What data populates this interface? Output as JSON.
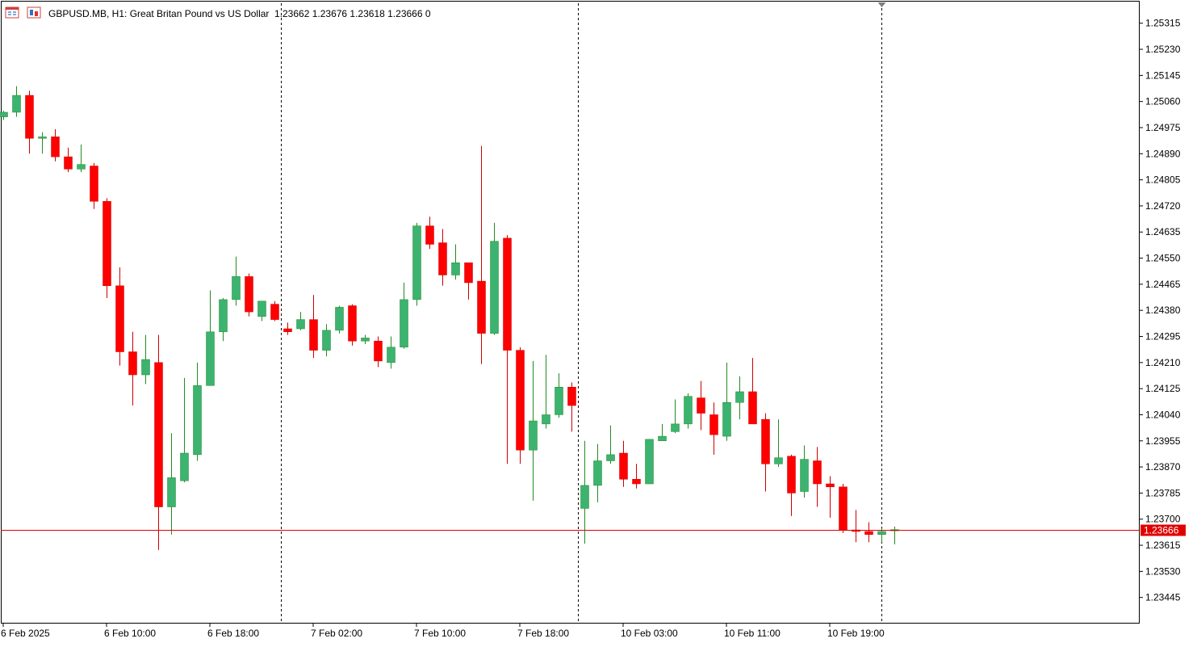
{
  "header": {
    "symbol_text": "GBPUSD.MB, H1:  Great Britan Pound vs US Dollar",
    "ohlc_text": "1.23662 1.23676 1.23618 1.23666  0"
  },
  "colors": {
    "bull": "#3cb371",
    "bear": "#ff0000",
    "wick_bull": "#228b22",
    "wick_bear": "#cc0000",
    "price_line": "#e00000",
    "axis": "#000000",
    "separator": "#000000"
  },
  "icons": [
    "chart-window-icon",
    "chart-type-icon",
    "shift-marker-icon"
  ],
  "chart_data": {
    "type": "candlestick",
    "symbol": "GBPUSD.MB",
    "timeframe": "H1",
    "ylim": [
      1.2336,
      1.2538
    ],
    "y_ticks": [
      "1.25315",
      "1.25230",
      "1.25145",
      "1.25060",
      "1.24975",
      "1.24890",
      "1.24805",
      "1.24720",
      "1.24635",
      "1.24550",
      "1.24465",
      "1.24380",
      "1.24295",
      "1.24210",
      "1.24125",
      "1.24040",
      "1.23955",
      "1.23870",
      "1.23785",
      "1.23700",
      "1.23615",
      "1.23530",
      "1.23445"
    ],
    "x_labels": [
      {
        "label": "6 Feb 2025",
        "index": 0
      },
      {
        "label": "6 Feb 10:00",
        "index": 8
      },
      {
        "label": "6 Feb 18:00",
        "index": 16
      },
      {
        "label": "7 Feb 02:00",
        "index": 24
      },
      {
        "label": "7 Feb 10:00",
        "index": 32
      },
      {
        "label": "7 Feb 18:00",
        "index": 40
      },
      {
        "label": "10 Feb 03:00",
        "index": 48
      },
      {
        "label": "10 Feb 11:00",
        "index": 56
      },
      {
        "label": "10 Feb 19:00",
        "index": 64
      }
    ],
    "day_separators": [
      21.5,
      44.5
    ],
    "current_bar_index": 68,
    "current_price": "1.23666",
    "candles": [
      {
        "o": 1.2501,
        "h": 1.2503,
        "l": 1.25,
        "c": 1.25025
      },
      {
        "o": 1.25025,
        "h": 1.2511,
        "l": 1.2501,
        "c": 1.2508
      },
      {
        "o": 1.2508,
        "h": 1.25095,
        "l": 1.2489,
        "c": 1.2494
      },
      {
        "o": 1.2494,
        "h": 1.2496,
        "l": 1.2489,
        "c": 1.24945
      },
      {
        "o": 1.24945,
        "h": 1.2497,
        "l": 1.24865,
        "c": 1.2488
      },
      {
        "o": 1.2488,
        "h": 1.2491,
        "l": 1.2483,
        "c": 1.2484
      },
      {
        "o": 1.2484,
        "h": 1.2492,
        "l": 1.2483,
        "c": 1.24855
      },
      {
        "o": 1.2485,
        "h": 1.2486,
        "l": 1.2471,
        "c": 1.24735
      },
      {
        "o": 1.24735,
        "h": 1.24745,
        "l": 1.2442,
        "c": 1.2446
      },
      {
        "o": 1.2446,
        "h": 1.2452,
        "l": 1.242,
        "c": 1.24245
      },
      {
        "o": 1.24245,
        "h": 1.2431,
        "l": 1.2407,
        "c": 1.2417
      },
      {
        "o": 1.2417,
        "h": 1.243,
        "l": 1.2414,
        "c": 1.2422
      },
      {
        "o": 1.2421,
        "h": 1.243,
        "l": 1.236,
        "c": 1.2374
      },
      {
        "o": 1.2374,
        "h": 1.2398,
        "l": 1.2365,
        "c": 1.23835
      },
      {
        "o": 1.23825,
        "h": 1.2416,
        "l": 1.2382,
        "c": 1.23915
      },
      {
        "o": 1.2391,
        "h": 1.2421,
        "l": 1.2389,
        "c": 1.24135
      },
      {
        "o": 1.24135,
        "h": 1.24445,
        "l": 1.24135,
        "c": 1.2431
      },
      {
        "o": 1.2431,
        "h": 1.2442,
        "l": 1.2428,
        "c": 1.24415
      },
      {
        "o": 1.24415,
        "h": 1.24555,
        "l": 1.24395,
        "c": 1.2449
      },
      {
        "o": 1.2449,
        "h": 1.245,
        "l": 1.2436,
        "c": 1.24375
      },
      {
        "o": 1.2436,
        "h": 1.2441,
        "l": 1.24345,
        "c": 1.2441
      },
      {
        "o": 1.244,
        "h": 1.2441,
        "l": 1.24345,
        "c": 1.2435
      },
      {
        "o": 1.2432,
        "h": 1.2434,
        "l": 1.243,
        "c": 1.2431
      },
      {
        "o": 1.2432,
        "h": 1.24375,
        "l": 1.24315,
        "c": 1.2435
      },
      {
        "o": 1.2435,
        "h": 1.2443,
        "l": 1.24225,
        "c": 1.2425
      },
      {
        "o": 1.2425,
        "h": 1.24335,
        "l": 1.2423,
        "c": 1.24315
      },
      {
        "o": 1.24315,
        "h": 1.24395,
        "l": 1.24305,
        "c": 1.2439
      },
      {
        "o": 1.24395,
        "h": 1.244,
        "l": 1.24265,
        "c": 1.2428
      },
      {
        "o": 1.2428,
        "h": 1.243,
        "l": 1.2427,
        "c": 1.2429
      },
      {
        "o": 1.2428,
        "h": 1.24295,
        "l": 1.24195,
        "c": 1.24215
      },
      {
        "o": 1.2421,
        "h": 1.24295,
        "l": 1.2419,
        "c": 1.2426
      },
      {
        "o": 1.2426,
        "h": 1.2447,
        "l": 1.24255,
        "c": 1.24415
      },
      {
        "o": 1.24415,
        "h": 1.24665,
        "l": 1.24395,
        "c": 1.24655
      },
      {
        "o": 1.24655,
        "h": 1.24685,
        "l": 1.2458,
        "c": 1.24595
      },
      {
        "o": 1.246,
        "h": 1.24645,
        "l": 1.2446,
        "c": 1.24495
      },
      {
        "o": 1.24495,
        "h": 1.24595,
        "l": 1.2448,
        "c": 1.24535
      },
      {
        "o": 1.24535,
        "h": 1.24535,
        "l": 1.24415,
        "c": 1.2447
      },
      {
        "o": 1.24475,
        "h": 1.24915,
        "l": 1.24205,
        "c": 1.24305
      },
      {
        "o": 1.24305,
        "h": 1.24665,
        "l": 1.243,
        "c": 1.24605
      },
      {
        "o": 1.24615,
        "h": 1.24625,
        "l": 1.2388,
        "c": 1.2425
      },
      {
        "o": 1.2425,
        "h": 1.2426,
        "l": 1.2388,
        "c": 1.23925
      },
      {
        "o": 1.23925,
        "h": 1.24215,
        "l": 1.2376,
        "c": 1.2402
      },
      {
        "o": 1.2401,
        "h": 1.24235,
        "l": 1.23995,
        "c": 1.2404
      },
      {
        "o": 1.2404,
        "h": 1.24175,
        "l": 1.2403,
        "c": 1.2413
      },
      {
        "o": 1.2413,
        "h": 1.24145,
        "l": 1.23985,
        "c": 1.2407
      },
      {
        "o": 1.23735,
        "h": 1.23955,
        "l": 1.2362,
        "c": 1.2381
      },
      {
        "o": 1.2381,
        "h": 1.23945,
        "l": 1.23755,
        "c": 1.2389
      },
      {
        "o": 1.2389,
        "h": 1.24005,
        "l": 1.2388,
        "c": 1.2391
      },
      {
        "o": 1.23915,
        "h": 1.23955,
        "l": 1.23805,
        "c": 1.2383
      },
      {
        "o": 1.2383,
        "h": 1.2388,
        "l": 1.238,
        "c": 1.23815
      },
      {
        "o": 1.23815,
        "h": 1.2396,
        "l": 1.23815,
        "c": 1.2396
      },
      {
        "o": 1.23955,
        "h": 1.2401,
        "l": 1.23955,
        "c": 1.2397
      },
      {
        "o": 1.23985,
        "h": 1.2409,
        "l": 1.2398,
        "c": 1.2401
      },
      {
        "o": 1.2401,
        "h": 1.2411,
        "l": 1.23995,
        "c": 1.241
      },
      {
        "o": 1.24095,
        "h": 1.2415,
        "l": 1.2399,
        "c": 1.24045
      },
      {
        "o": 1.2404,
        "h": 1.2408,
        "l": 1.2391,
        "c": 1.23975
      },
      {
        "o": 1.2397,
        "h": 1.2421,
        "l": 1.23955,
        "c": 1.2408
      },
      {
        "o": 1.2408,
        "h": 1.24165,
        "l": 1.24025,
        "c": 1.24115
      },
      {
        "o": 1.24115,
        "h": 1.24225,
        "l": 1.2401,
        "c": 1.2401
      },
      {
        "o": 1.24025,
        "h": 1.24045,
        "l": 1.2379,
        "c": 1.2388
      },
      {
        "o": 1.2388,
        "h": 1.24025,
        "l": 1.2387,
        "c": 1.239
      },
      {
        "o": 1.23905,
        "h": 1.2391,
        "l": 1.2371,
        "c": 1.23785
      },
      {
        "o": 1.2379,
        "h": 1.2394,
        "l": 1.2377,
        "c": 1.23895
      },
      {
        "o": 1.2389,
        "h": 1.23935,
        "l": 1.2374,
        "c": 1.23815
      },
      {
        "o": 1.23815,
        "h": 1.2384,
        "l": 1.23705,
        "c": 1.23805
      },
      {
        "o": 1.23805,
        "h": 1.23815,
        "l": 1.23655,
        "c": 1.23665
      },
      {
        "o": 1.23665,
        "h": 1.2373,
        "l": 1.23625,
        "c": 1.2366
      },
      {
        "o": 1.2366,
        "h": 1.2369,
        "l": 1.23625,
        "c": 1.2365
      },
      {
        "o": 1.2365,
        "h": 1.2367,
        "l": 1.23625,
        "c": 1.2366
      },
      {
        "o": 1.23662,
        "h": 1.23676,
        "l": 1.23618,
        "c": 1.23666
      }
    ]
  }
}
